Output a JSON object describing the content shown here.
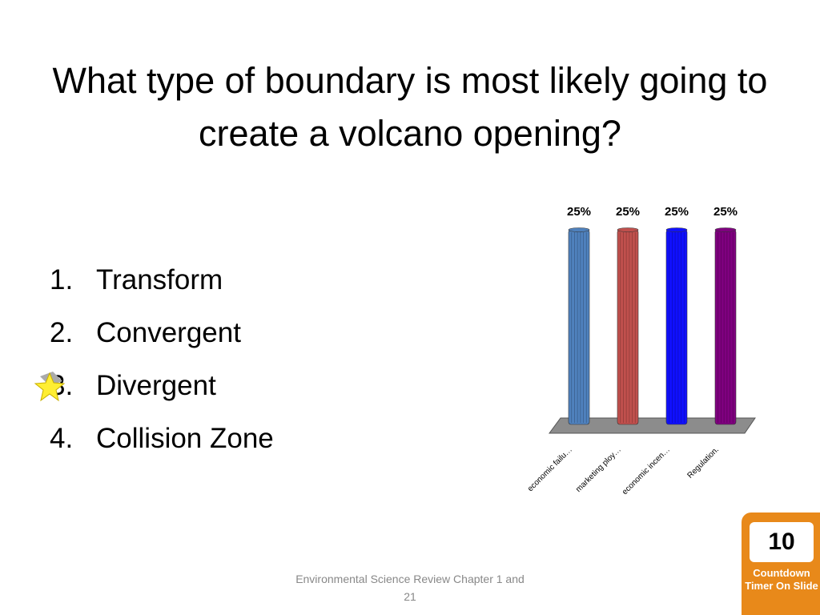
{
  "slide": {
    "title": "What type of boundary is most likely going to create a volcano opening?",
    "answers": [
      "Transform",
      "Convergent",
      "Divergent",
      "Collision Zone"
    ],
    "footer": "Environmental Science Review Chapter 1 and 21"
  },
  "timer": {
    "count": "10",
    "label": "Countdown Timer On Slide"
  },
  "chart_data": {
    "type": "bar",
    "categories": [
      "economic failu…",
      "marketing ploy…",
      "economic incen…",
      "Regulation."
    ],
    "values": [
      25,
      25,
      25,
      25
    ],
    "value_labels": [
      "25%",
      "25%",
      "25%",
      "25%"
    ],
    "colors": [
      "#4f81bd",
      "#c0504d",
      "#1010ff",
      "#7f007f"
    ]
  }
}
